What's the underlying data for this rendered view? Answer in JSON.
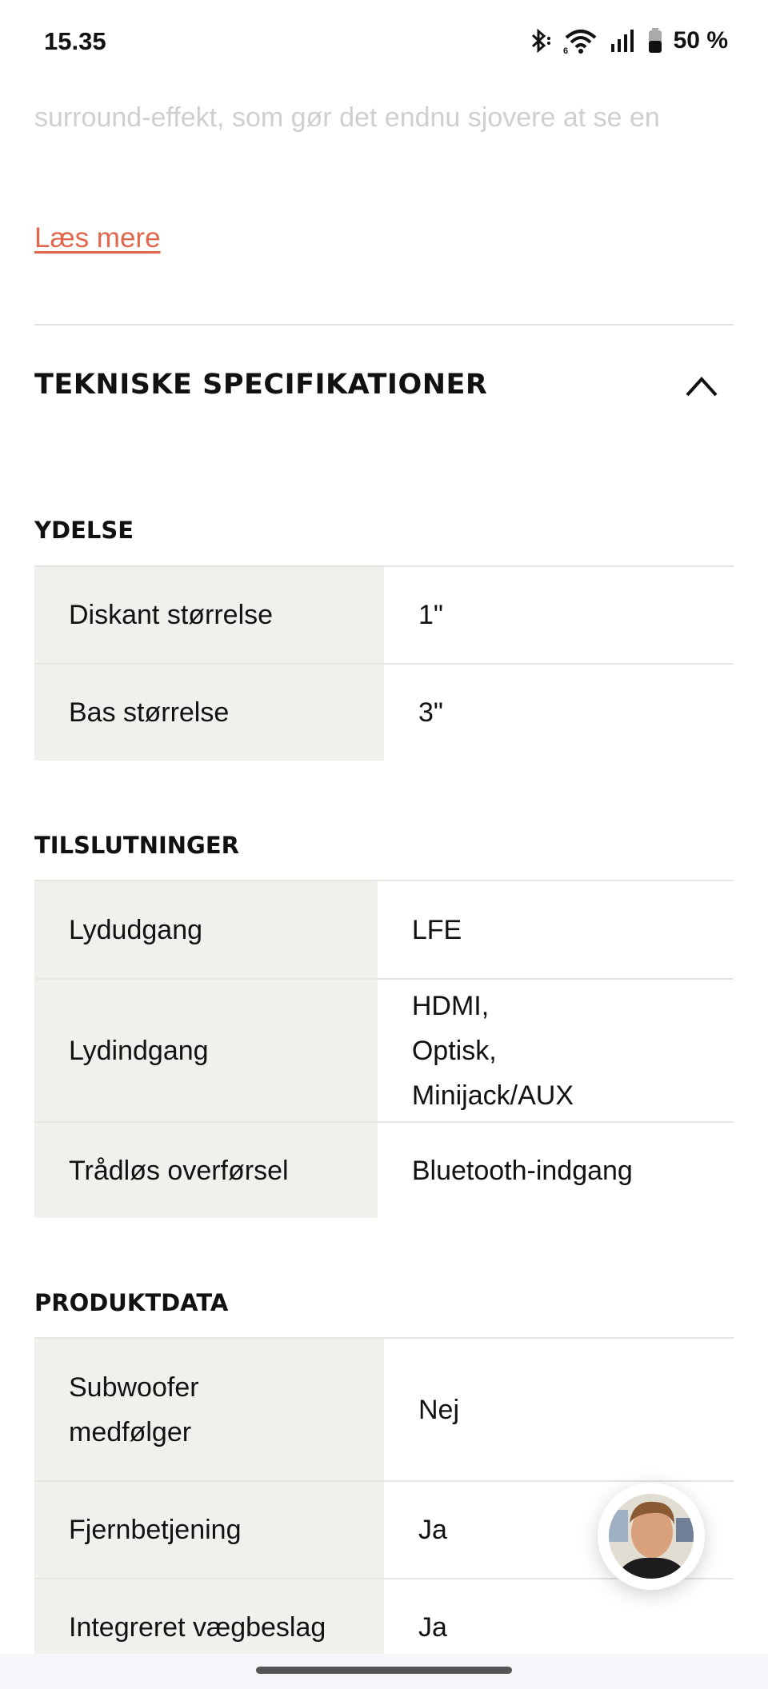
{
  "status_bar": {
    "time": "15.35",
    "battery": "50 %",
    "battery_level": 0.5,
    "icons": [
      "bluetooth-icon",
      "wifi-6-icon",
      "signal-icon",
      "battery-icon"
    ]
  },
  "description": {
    "faded_line": "surround-effekt, som gør det endnu sjovere at se en",
    "read_more": "Læs mere",
    "link_color": "#e0674d"
  },
  "specs": {
    "title": "TEKNISKE SPECIFIKATIONER",
    "groups": [
      {
        "title": "YDELSE",
        "rows": [
          [
            "Diskant størrelse",
            "1\""
          ],
          [
            "Bas størrelse",
            "3\""
          ]
        ]
      },
      {
        "title": "TILSLUTNINGER",
        "rows": [
          [
            "Lydudgang",
            "LFE"
          ],
          [
            "Lydindgang",
            "HDMI, Optisk, Minijack/AUX"
          ],
          [
            "Trådløs overførsel",
            "Bluetooth-indgang"
          ]
        ]
      },
      {
        "title": "PRODUKTDATA",
        "rows": [
          [
            "Subwoofer medfølger",
            "Nej"
          ],
          [
            "Fjernbetjening",
            "Ja"
          ],
          [
            "Integreret vægbeslag",
            "Ja"
          ]
        ]
      }
    ]
  },
  "chat": {
    "avatar": "support-agent-avatar"
  }
}
